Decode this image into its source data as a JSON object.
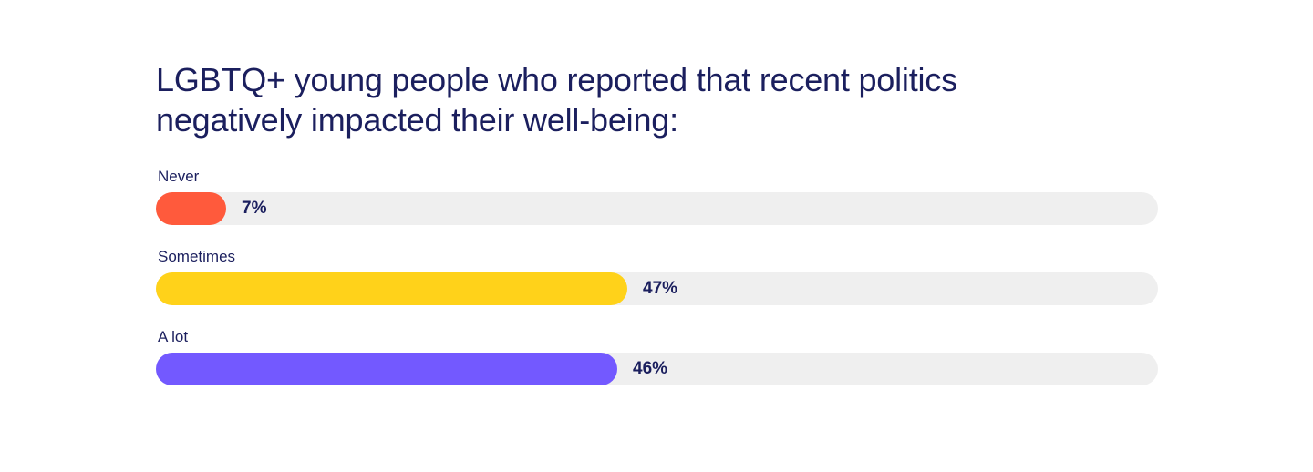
{
  "chart_data": {
    "type": "bar",
    "orientation": "horizontal",
    "title": "LGBTQ+ young people who reported that recent politics negatively impacted their well-being:",
    "categories": [
      "Never",
      "Sometimes",
      "A lot"
    ],
    "values": [
      7,
      47,
      46
    ],
    "value_labels": [
      "7%",
      "47%",
      "46%"
    ],
    "colors": [
      "#ff5a3c",
      "#ffd21a",
      "#7359ff"
    ],
    "track_color": "#efefef",
    "xlim": [
      0,
      100
    ],
    "grid": false,
    "legend": "none"
  }
}
